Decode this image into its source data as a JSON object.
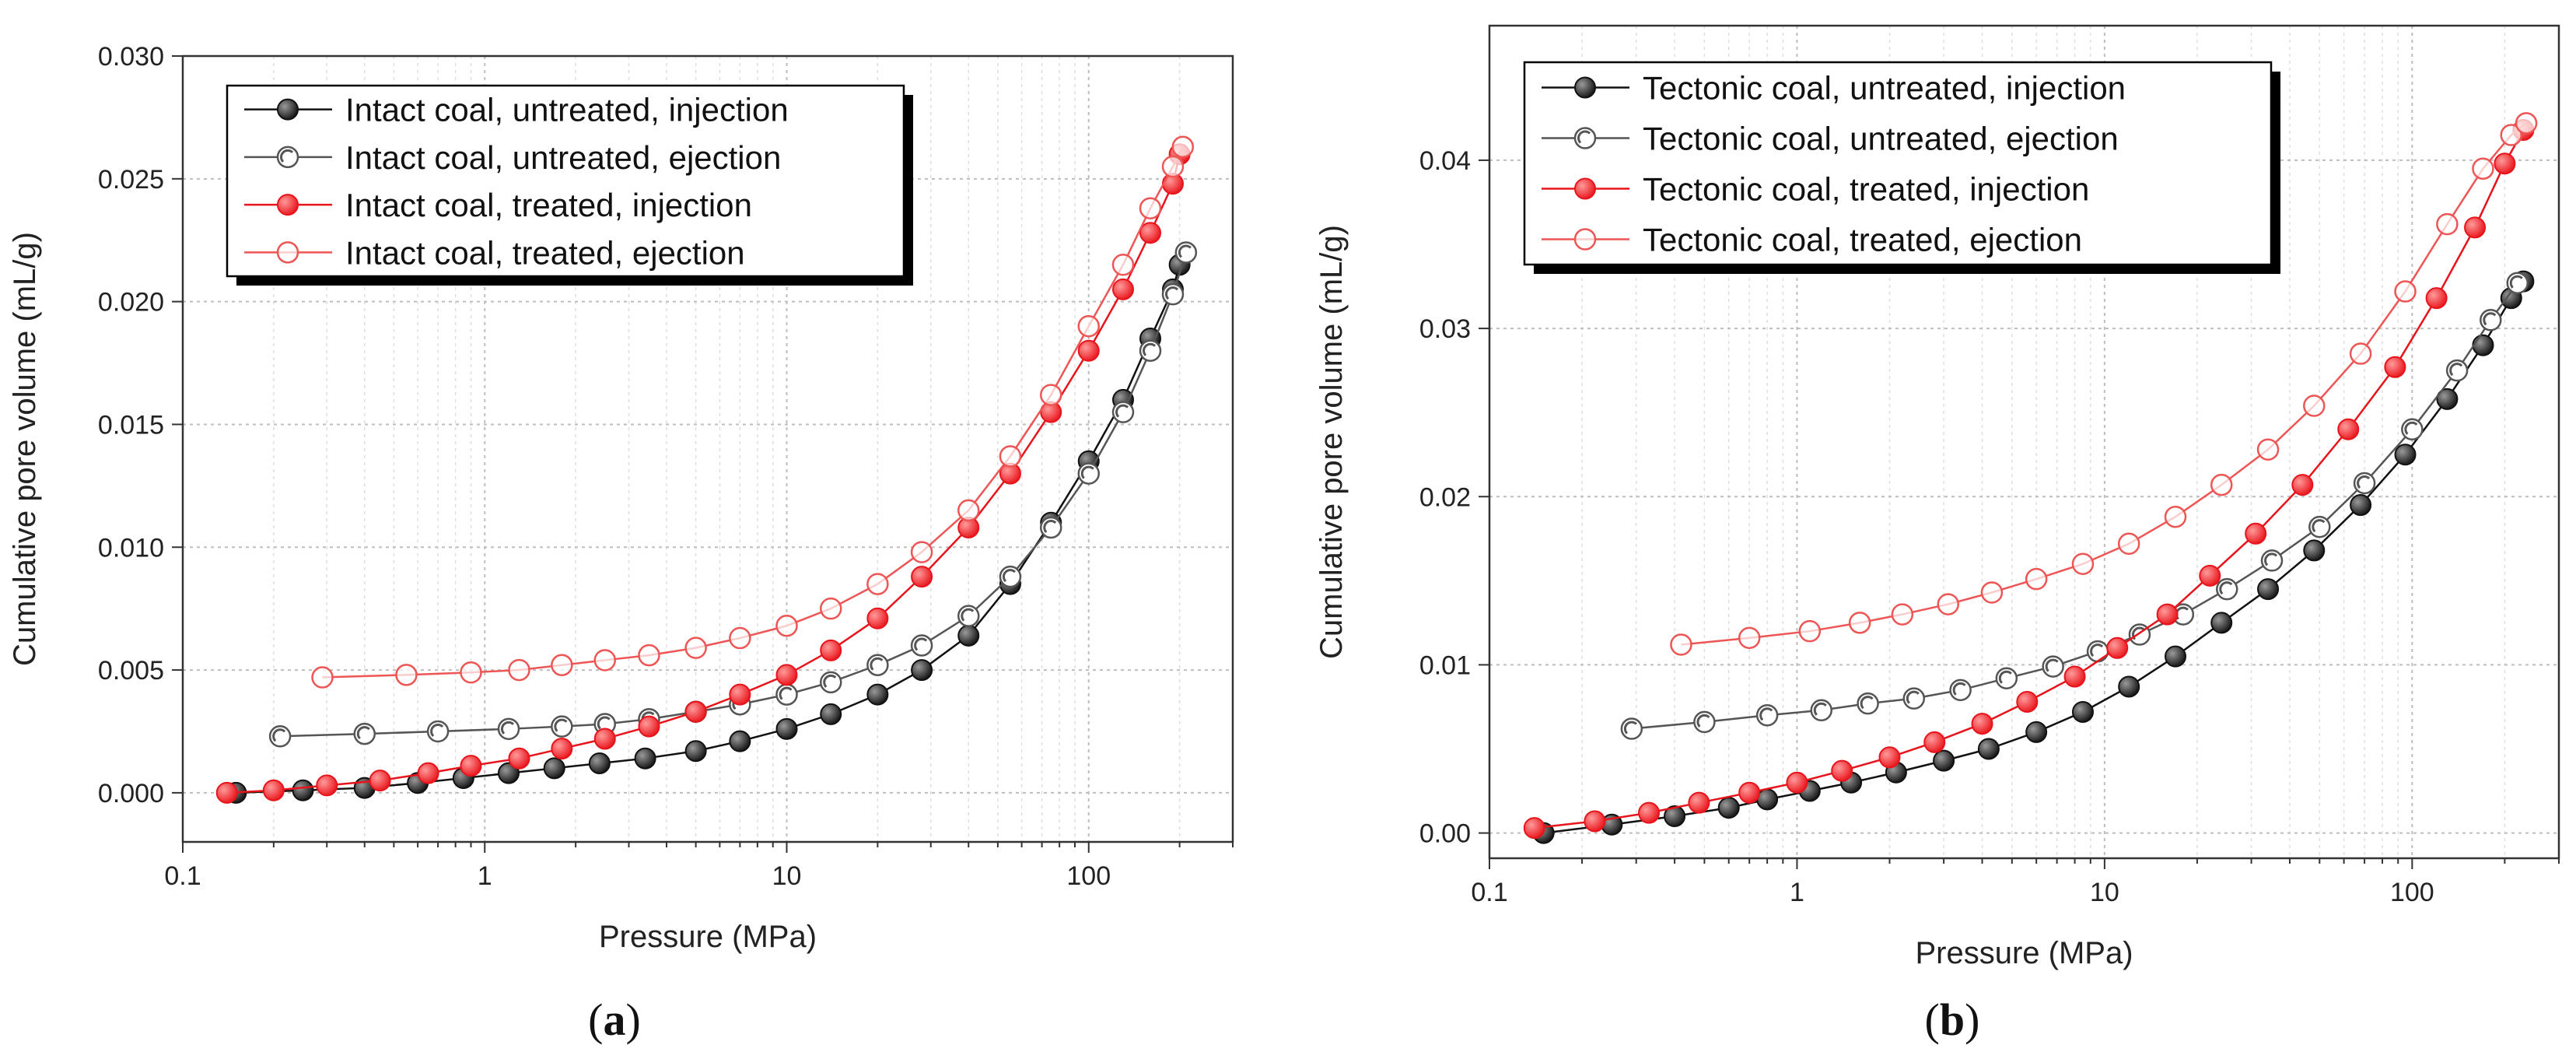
{
  "chart_data": [
    {
      "type": "scatter",
      "panel_label": "(a)",
      "xlabel": "Pressure (MPa)",
      "ylabel": "Cumulative pore volume (mL/g)",
      "xscale": "log",
      "xlim": [
        0.1,
        300
      ],
      "ylim": [
        -0.002,
        0.03
      ],
      "xticks": [
        0.1,
        1,
        10,
        100
      ],
      "xtick_labels": [
        "0.1",
        "1",
        "10",
        "100"
      ],
      "yticks": [
        0.0,
        0.005,
        0.01,
        0.015,
        0.02,
        0.025,
        0.03
      ],
      "ytick_labels": [
        "0.000",
        "0.005",
        "0.010",
        "0.015",
        "0.020",
        "0.025",
        "0.030"
      ],
      "grid": true,
      "legend_position": "top-left",
      "colors": {
        "black": "#111111",
        "red": "#e8141b",
        "grey": "#555555",
        "light_red": "#ee5555"
      },
      "series": [
        {
          "name": "Intact coal, untreated, injection",
          "color": "#111111",
          "marker": "filled",
          "x": [
            0.15,
            0.25,
            0.4,
            0.6,
            0.85,
            1.2,
            1.7,
            2.4,
            3.4,
            5,
            7,
            10,
            14,
            20,
            28,
            40,
            55,
            75,
            100,
            130,
            160,
            190,
            200
          ],
          "y": [
            0.0,
            0.0001,
            0.0002,
            0.0004,
            0.0006,
            0.0008,
            0.001,
            0.0012,
            0.0014,
            0.0017,
            0.0021,
            0.0026,
            0.0032,
            0.004,
            0.005,
            0.0064,
            0.0085,
            0.011,
            0.0135,
            0.016,
            0.0185,
            0.0205,
            0.0215
          ]
        },
        {
          "name": "Intact coal, untreated, ejection",
          "color": "#555555",
          "marker": "half",
          "x": [
            0.21,
            0.4,
            0.7,
            1.2,
            1.8,
            2.5,
            3.5,
            5,
            7,
            10,
            14,
            20,
            28,
            40,
            55,
            75,
            100,
            130,
            160,
            190,
            210
          ],
          "y": [
            0.0023,
            0.0024,
            0.0025,
            0.0026,
            0.0027,
            0.0028,
            0.003,
            0.0033,
            0.0036,
            0.004,
            0.0045,
            0.0052,
            0.006,
            0.0072,
            0.0088,
            0.0108,
            0.013,
            0.0155,
            0.018,
            0.0203,
            0.022
          ]
        },
        {
          "name": "Intact coal, treated, injection",
          "color": "#e8141b",
          "marker": "filled",
          "x": [
            0.14,
            0.2,
            0.3,
            0.45,
            0.65,
            0.9,
            1.3,
            1.8,
            2.5,
            3.5,
            5,
            7,
            10,
            14,
            20,
            28,
            40,
            55,
            75,
            100,
            130,
            160,
            190,
            200
          ],
          "y": [
            0.0,
            0.0001,
            0.0003,
            0.0005,
            0.0008,
            0.0011,
            0.0014,
            0.0018,
            0.0022,
            0.0027,
            0.0033,
            0.004,
            0.0048,
            0.0058,
            0.0071,
            0.0088,
            0.0108,
            0.013,
            0.0155,
            0.018,
            0.0205,
            0.0228,
            0.0248,
            0.026
          ]
        },
        {
          "name": "Intact coal, treated, ejection",
          "color": "#ee5555",
          "marker": "open",
          "x": [
            0.29,
            0.55,
            0.9,
            1.3,
            1.8,
            2.5,
            3.5,
            5,
            7,
            10,
            14,
            20,
            28,
            40,
            55,
            75,
            100,
            130,
            160,
            190,
            205
          ],
          "y": [
            0.0047,
            0.0048,
            0.0049,
            0.005,
            0.0052,
            0.0054,
            0.0056,
            0.0059,
            0.0063,
            0.0068,
            0.0075,
            0.0085,
            0.0098,
            0.0115,
            0.0137,
            0.0162,
            0.019,
            0.0215,
            0.0238,
            0.0255,
            0.0263
          ]
        }
      ]
    },
    {
      "type": "scatter",
      "panel_label": "(b)",
      "xlabel": "Pressure (MPa)",
      "ylabel": "Cumulative pore volume (mL/g)",
      "xscale": "log",
      "xlim": [
        0.1,
        300
      ],
      "ylim": [
        -0.0015,
        0.048
      ],
      "xticks": [
        0.1,
        1,
        10,
        100
      ],
      "xtick_labels": [
        "0.1",
        "1",
        "10",
        "100"
      ],
      "yticks": [
        0.0,
        0.01,
        0.02,
        0.03,
        0.04
      ],
      "ytick_labels": [
        "0.00",
        "0.01",
        "0.02",
        "0.03",
        "0.04"
      ],
      "grid": true,
      "legend_position": "top-left",
      "colors": {
        "black": "#111111",
        "red": "#e8141b",
        "grey": "#555555",
        "light_red": "#ee5555"
      },
      "series": [
        {
          "name": "Tectonic coal, untreated, injection",
          "color": "#111111",
          "marker": "filled",
          "x": [
            0.15,
            0.25,
            0.4,
            0.6,
            0.8,
            1.1,
            1.5,
            2.1,
            3,
            4.2,
            6,
            8.5,
            12,
            17,
            24,
            34,
            48,
            68,
            95,
            130,
            170,
            210,
            230
          ],
          "y": [
            0.0,
            0.0005,
            0.001,
            0.0015,
            0.002,
            0.0025,
            0.003,
            0.0036,
            0.0043,
            0.005,
            0.006,
            0.0072,
            0.0087,
            0.0105,
            0.0125,
            0.0145,
            0.0168,
            0.0195,
            0.0225,
            0.0258,
            0.029,
            0.0318,
            0.0328
          ]
        },
        {
          "name": "Tectonic coal, untreated, ejection",
          "color": "#555555",
          "marker": "half",
          "x": [
            0.29,
            0.5,
            0.8,
            1.2,
            1.7,
            2.4,
            3.4,
            4.8,
            6.8,
            9.5,
            13,
            18,
            25,
            35,
            50,
            70,
            100,
            140,
            180,
            220
          ],
          "y": [
            0.0062,
            0.0066,
            0.007,
            0.0073,
            0.0077,
            0.008,
            0.0085,
            0.0092,
            0.0099,
            0.0108,
            0.0118,
            0.013,
            0.0145,
            0.0162,
            0.0182,
            0.0208,
            0.024,
            0.0275,
            0.0305,
            0.0327
          ]
        },
        {
          "name": "Tectonic coal, treated, injection",
          "color": "#e8141b",
          "marker": "filled",
          "x": [
            0.14,
            0.22,
            0.33,
            0.48,
            0.7,
            1.0,
            1.4,
            2.0,
            2.8,
            4,
            5.6,
            8,
            11,
            16,
            22,
            31,
            44,
            62,
            88,
            120,
            160,
            200,
            230
          ],
          "y": [
            0.0003,
            0.0007,
            0.0012,
            0.0018,
            0.0024,
            0.003,
            0.0037,
            0.0045,
            0.0054,
            0.0065,
            0.0078,
            0.0093,
            0.011,
            0.013,
            0.0153,
            0.0178,
            0.0207,
            0.024,
            0.0277,
            0.0318,
            0.036,
            0.0398,
            0.0418
          ]
        },
        {
          "name": "Tectonic coal, treated, ejection",
          "color": "#ee5555",
          "marker": "open",
          "x": [
            0.42,
            0.7,
            1.1,
            1.6,
            2.2,
            3.1,
            4.3,
            6,
            8.5,
            12,
            17,
            24,
            34,
            48,
            68,
            95,
            130,
            170,
            210,
            235
          ],
          "y": [
            0.0112,
            0.0116,
            0.012,
            0.0125,
            0.013,
            0.0136,
            0.0143,
            0.0151,
            0.016,
            0.0172,
            0.0188,
            0.0207,
            0.0228,
            0.0254,
            0.0285,
            0.0322,
            0.0362,
            0.0395,
            0.0415,
            0.0422
          ]
        }
      ]
    }
  ]
}
